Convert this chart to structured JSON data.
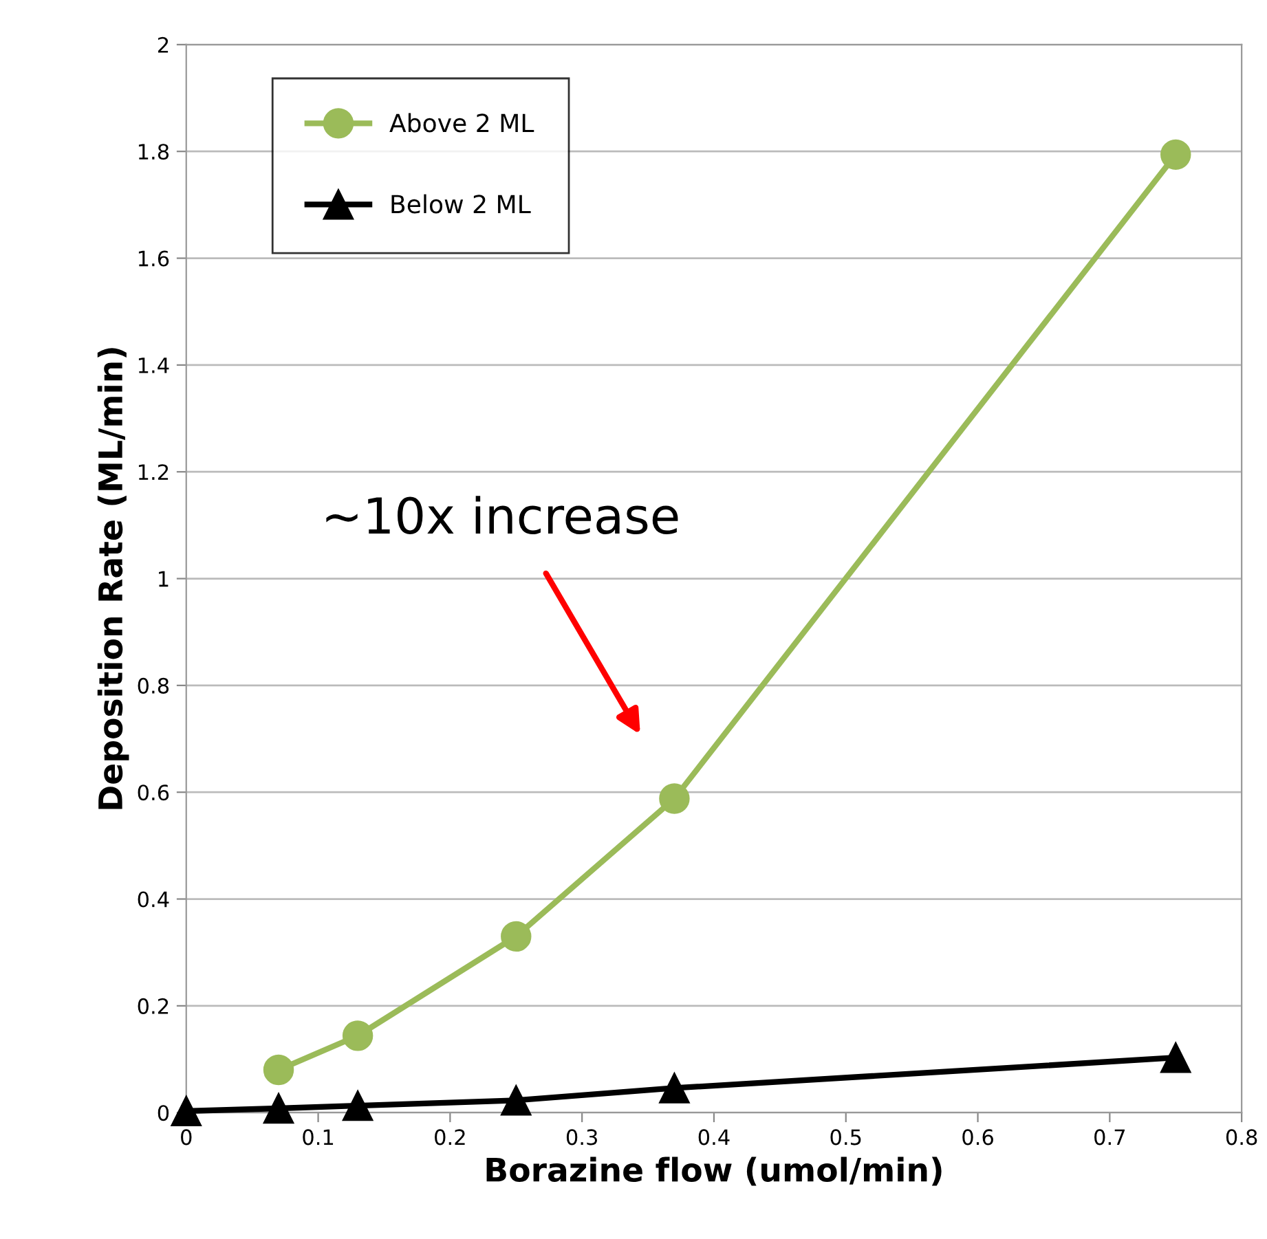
{
  "chart_data": {
    "type": "line",
    "xlabel": "Borazine flow (umol/min)",
    "ylabel": "Deposition Rate (ML/min)",
    "xlim": [
      0,
      0.8
    ],
    "xticks": [
      0,
      0.1,
      0.2,
      0.3,
      0.4,
      0.5,
      0.6,
      0.7,
      0.8
    ],
    "ylim": [
      0,
      2
    ],
    "yticks": [
      0,
      0.2,
      0.4,
      0.6,
      0.8,
      1,
      1.2,
      1.4,
      1.6,
      1.8,
      2
    ],
    "grid": "y",
    "legend": "top left",
    "series": [
      {
        "name": "Above 2 ML",
        "color": "#9bbb59",
        "marker": "circle",
        "x": [
          0.07,
          0.13,
          0.25,
          0.37,
          0.75
        ],
        "values": [
          0.08,
          0.144,
          0.33,
          0.588,
          1.794
        ]
      },
      {
        "name": "Below 2 ML",
        "color": "#000000",
        "marker": "triangle",
        "x": [
          0,
          0.07,
          0.13,
          0.25,
          0.37,
          0.75
        ],
        "values": [
          0.003,
          0.008,
          0.013,
          0.023,
          0.046,
          0.103
        ]
      }
    ],
    "annotations": [
      "~10x increase"
    ]
  }
}
